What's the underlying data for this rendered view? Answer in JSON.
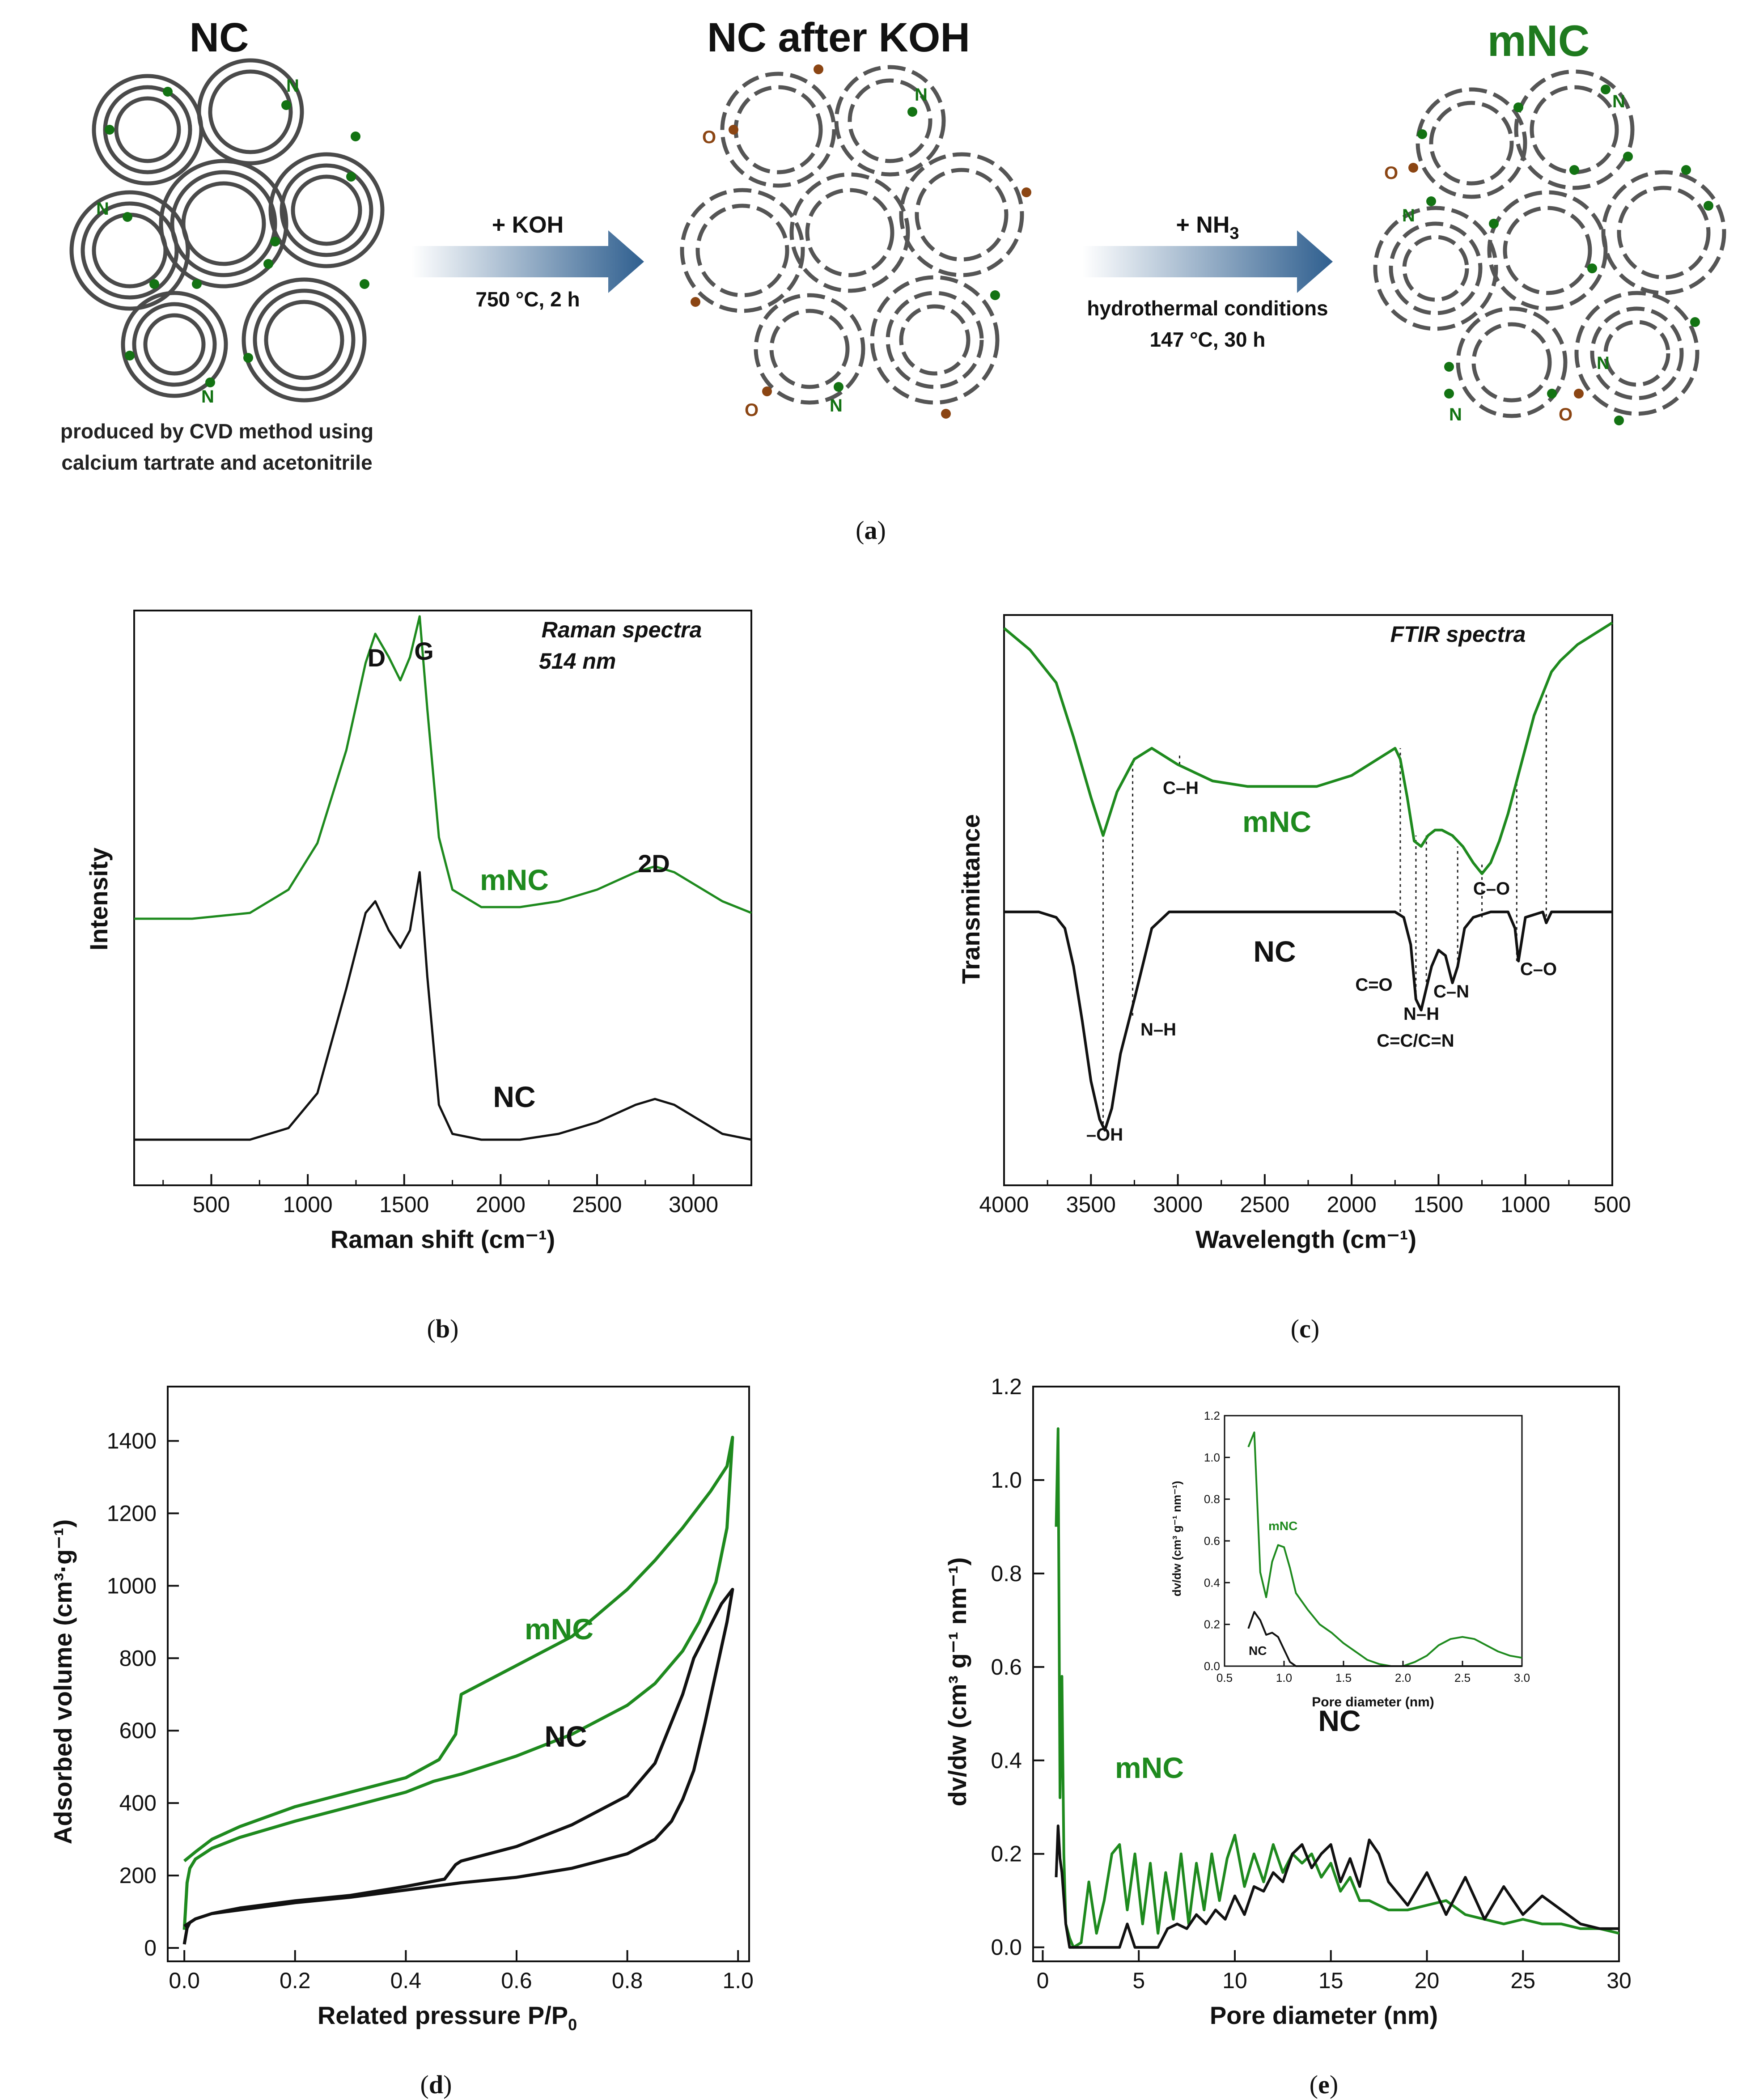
{
  "colors": {
    "green": "#1e8a1e",
    "black": "#111111",
    "dgreen": "#137313",
    "oxygen": "#8b4513",
    "arrow": "#3b6b9a"
  },
  "panel_a": {
    "title_nc": "NC",
    "title_nc_koh": "NC after KOH",
    "title_mnc": "mNC",
    "n_label": "N",
    "o_label": "O",
    "step1_reagent": "+ KOH",
    "step1_cond": "750 °C, 2 h",
    "step2_reagent_main": "+ NH",
    "step2_reagent_sub": "3",
    "step2_cond1": "hydrothermal conditions",
    "step2_cond2": "147 °C, 30 h",
    "caption1": "produced by CVD method using",
    "caption2": "calcium tartrate and acetonitrile",
    "label": "a"
  },
  "chart_data": [
    {
      "type": "line",
      "id": "b",
      "title": "Raman spectra",
      "subtitle": "514 nm",
      "xlabel": "Raman shift (cm⁻¹)",
      "ylabel": "Intensity",
      "xlim": [
        100,
        3300
      ],
      "xticks": [
        "500",
        "1000",
        "1500",
        "2000",
        "2500",
        "3000"
      ],
      "peak_labels": [
        "D",
        "G",
        "2D"
      ],
      "series": [
        {
          "name": "mNC",
          "x": [
            100,
            400,
            700,
            900,
            1050,
            1200,
            1300,
            1350,
            1420,
            1480,
            1530,
            1580,
            1620,
            1680,
            1750,
            1900,
            2100,
            2300,
            2500,
            2700,
            2800,
            2900,
            3000,
            3150,
            3300
          ],
          "y": [
            0.42,
            0.42,
            0.43,
            0.47,
            0.55,
            0.71,
            0.86,
            0.91,
            0.87,
            0.83,
            0.87,
            0.94,
            0.78,
            0.56,
            0.47,
            0.44,
            0.44,
            0.45,
            0.47,
            0.5,
            0.51,
            0.5,
            0.48,
            0.45,
            0.43
          ]
        },
        {
          "name": "NC",
          "x": [
            100,
            400,
            700,
            900,
            1050,
            1200,
            1300,
            1350,
            1420,
            1480,
            1530,
            1580,
            1620,
            1680,
            1750,
            1900,
            2100,
            2300,
            2500,
            2700,
            2800,
            2900,
            3000,
            3150,
            3300
          ],
          "y": [
            0.04,
            0.04,
            0.04,
            0.06,
            0.12,
            0.3,
            0.43,
            0.45,
            0.4,
            0.37,
            0.4,
            0.5,
            0.32,
            0.1,
            0.05,
            0.04,
            0.04,
            0.05,
            0.07,
            0.1,
            0.11,
            0.1,
            0.08,
            0.05,
            0.04
          ]
        }
      ],
      "label": "b"
    },
    {
      "type": "line",
      "id": "c",
      "title": "FTIR spectra",
      "xlabel": "Wavelength (cm⁻¹)",
      "ylabel": "Transmittance",
      "xlim": [
        4000,
        500
      ],
      "xticks": [
        "4000",
        "3500",
        "3000",
        "2500",
        "2000",
        "1500",
        "1000",
        "500"
      ],
      "annotations": [
        "C–H",
        "mNC",
        "C–O",
        "NC",
        "C=O",
        "C–N",
        "N–H",
        "C=C/C=N",
        "C–O",
        "N–H",
        "–OH"
      ],
      "series": [
        {
          "name": "mNC",
          "x": [
            4000,
            3850,
            3700,
            3600,
            3500,
            3430,
            3350,
            3250,
            3150,
            3000,
            2800,
            2600,
            2400,
            2200,
            2000,
            1850,
            1750,
            1720,
            1680,
            1640,
            1600,
            1560,
            1520,
            1480,
            1420,
            1360,
            1300,
            1250,
            1200,
            1150,
            1100,
            1050,
            1000,
            950,
            900,
            850,
            800,
            700,
            600,
            500
          ],
          "y": [
            0.98,
            0.94,
            0.88,
            0.78,
            0.67,
            0.6,
            0.68,
            0.74,
            0.76,
            0.73,
            0.7,
            0.69,
            0.69,
            0.69,
            0.71,
            0.74,
            0.76,
            0.74,
            0.67,
            0.59,
            0.58,
            0.6,
            0.61,
            0.61,
            0.6,
            0.58,
            0.55,
            0.53,
            0.55,
            0.59,
            0.64,
            0.7,
            0.76,
            0.82,
            0.86,
            0.9,
            0.92,
            0.95,
            0.97,
            0.99
          ]
        },
        {
          "name": "NC",
          "x": [
            4000,
            3800,
            3700,
            3650,
            3600,
            3550,
            3500,
            3450,
            3420,
            3380,
            3330,
            3250,
            3150,
            3050,
            2900,
            2700,
            2500,
            2300,
            2100,
            1900,
            1750,
            1700,
            1660,
            1630,
            1600,
            1570,
            1540,
            1500,
            1460,
            1420,
            1390,
            1350,
            1300,
            1200,
            1100,
            1060,
            1040,
            1000,
            900,
            880,
            850,
            700,
            500
          ],
          "y": [
            0.46,
            0.46,
            0.45,
            0.43,
            0.36,
            0.26,
            0.15,
            0.08,
            0.06,
            0.1,
            0.2,
            0.3,
            0.43,
            0.46,
            0.46,
            0.46,
            0.46,
            0.46,
            0.46,
            0.46,
            0.46,
            0.45,
            0.4,
            0.3,
            0.28,
            0.32,
            0.36,
            0.39,
            0.38,
            0.33,
            0.36,
            0.43,
            0.45,
            0.46,
            0.46,
            0.43,
            0.37,
            0.45,
            0.46,
            0.44,
            0.46,
            0.46,
            0.46
          ]
        }
      ],
      "label": "c"
    },
    {
      "type": "line",
      "id": "d",
      "xlabel": "Related pressure P/P",
      "xlabel_sub": "0",
      "ylabel": "Adsorbed volume (cm³·g⁻¹)",
      "xlim": [
        -0.03,
        1.02
      ],
      "ylim": [
        0,
        1550
      ],
      "xticks": [
        0.0,
        0.2,
        0.4,
        0.6,
        0.8,
        1.0
      ],
      "yticks": [
        0,
        200,
        400,
        600,
        800,
        1000,
        1200,
        1400
      ],
      "series": [
        {
          "name": "mNC",
          "label": "mNC",
          "x": [
            0.0,
            0.005,
            0.01,
            0.02,
            0.05,
            0.1,
            0.2,
            0.3,
            0.4,
            0.45,
            0.5,
            0.6,
            0.7,
            0.8,
            0.85,
            0.9,
            0.93,
            0.96,
            0.98,
            0.99,
            0.99,
            0.98,
            0.95,
            0.9,
            0.85,
            0.8,
            0.7,
            0.6,
            0.5,
            0.49,
            0.46,
            0.4,
            0.3,
            0.2,
            0.1,
            0.05,
            0.02,
            0.0
          ],
          "y": [
            50,
            180,
            220,
            245,
            275,
            305,
            350,
            390,
            430,
            460,
            480,
            530,
            590,
            670,
            730,
            820,
            900,
            1010,
            1160,
            1410,
            1410,
            1330,
            1260,
            1160,
            1070,
            990,
            860,
            780,
            700,
            590,
            520,
            470,
            430,
            390,
            335,
            300,
            265,
            240
          ]
        },
        {
          "name": "NC",
          "label": "NC",
          "x": [
            0.0,
            0.005,
            0.01,
            0.02,
            0.05,
            0.1,
            0.2,
            0.3,
            0.4,
            0.45,
            0.5,
            0.6,
            0.7,
            0.8,
            0.85,
            0.88,
            0.9,
            0.92,
            0.94,
            0.96,
            0.98,
            0.99,
            0.99,
            0.97,
            0.95,
            0.92,
            0.9,
            0.85,
            0.8,
            0.7,
            0.6,
            0.5,
            0.49,
            0.47,
            0.4,
            0.3,
            0.2,
            0.1,
            0.05,
            0.02,
            0.0
          ],
          "y": [
            10,
            55,
            70,
            80,
            95,
            105,
            125,
            140,
            160,
            170,
            180,
            195,
            220,
            260,
            300,
            350,
            410,
            490,
            620,
            760,
            900,
            990,
            990,
            950,
            890,
            800,
            700,
            510,
            420,
            340,
            280,
            240,
            230,
            190,
            170,
            145,
            130,
            110,
            95,
            80,
            60
          ]
        }
      ],
      "label": "d"
    },
    {
      "type": "line",
      "id": "e",
      "xlabel": "Pore diameter (nm)",
      "ylabel": "dv/dw (cm³ g⁻¹ nm⁻¹)",
      "xlim": [
        -0.5,
        30
      ],
      "ylim": [
        -0.03,
        1.2
      ],
      "xticks": [
        0,
        5,
        10,
        15,
        20,
        25,
        30
      ],
      "yticks": [
        0.0,
        0.2,
        0.4,
        0.6,
        0.8,
        1.0,
        1.2
      ],
      "series": [
        {
          "name": "mNC",
          "label": "mNC",
          "x": [
            0.7,
            0.8,
            0.9,
            1.0,
            1.1,
            1.2,
            1.4,
            1.6,
            2.0,
            2.4,
            2.8,
            3.2,
            3.6,
            4.0,
            4.4,
            4.8,
            5.2,
            5.6,
            6.0,
            6.4,
            6.8,
            7.2,
            7.6,
            8.0,
            8.4,
            8.8,
            9.2,
            9.6,
            10.0,
            10.5,
            11.0,
            11.5,
            12.0,
            12.5,
            13.0,
            13.5,
            14.0,
            14.5,
            15.0,
            15.5,
            16.0,
            16.5,
            17.0,
            18.0,
            19.0,
            20.0,
            21.0,
            22.0,
            23.0,
            24.0,
            25.0,
            26.0,
            27.0,
            28.0,
            29.0,
            30.0
          ],
          "y": [
            0.9,
            1.11,
            0.32,
            0.58,
            0.2,
            0.05,
            0.02,
            0.0,
            0.01,
            0.14,
            0.03,
            0.1,
            0.2,
            0.22,
            0.08,
            0.2,
            0.05,
            0.18,
            0.03,
            0.16,
            0.06,
            0.2,
            0.05,
            0.18,
            0.08,
            0.2,
            0.1,
            0.19,
            0.24,
            0.13,
            0.2,
            0.14,
            0.22,
            0.16,
            0.2,
            0.18,
            0.2,
            0.15,
            0.18,
            0.12,
            0.15,
            0.1,
            0.1,
            0.08,
            0.08,
            0.09,
            0.1,
            0.07,
            0.06,
            0.05,
            0.06,
            0.05,
            0.05,
            0.04,
            0.04,
            0.03
          ]
        },
        {
          "name": "NC",
          "label": "NC",
          "x": [
            0.7,
            0.8,
            0.9,
            1.0,
            1.2,
            1.4,
            2.0,
            3.0,
            4.0,
            4.4,
            4.8,
            5.5,
            6.0,
            6.5,
            7.0,
            7.5,
            8.0,
            8.5,
            9.0,
            9.5,
            10.0,
            10.5,
            11.0,
            11.5,
            12.0,
            12.5,
            13.0,
            13.5,
            14.0,
            14.5,
            15.0,
            15.5,
            16.0,
            16.5,
            17.0,
            17.5,
            18.0,
            19.0,
            20.0,
            21.0,
            22.0,
            23.0,
            24.0,
            25.0,
            26.0,
            27.0,
            28.0,
            29.0,
            30.0
          ],
          "y": [
            0.15,
            0.26,
            0.19,
            0.16,
            0.05,
            0.0,
            0.0,
            0.0,
            0.0,
            0.05,
            0.0,
            0.0,
            0.0,
            0.04,
            0.05,
            0.04,
            0.07,
            0.05,
            0.08,
            0.06,
            0.11,
            0.07,
            0.13,
            0.12,
            0.16,
            0.14,
            0.2,
            0.22,
            0.17,
            0.2,
            0.22,
            0.14,
            0.19,
            0.13,
            0.23,
            0.2,
            0.14,
            0.09,
            0.16,
            0.07,
            0.15,
            0.06,
            0.13,
            0.07,
            0.11,
            0.08,
            0.05,
            0.04,
            0.04
          ]
        }
      ],
      "inset": {
        "xlabel": "Pore diameter (nm)",
        "ylabel": "dv/dw (cm³ g⁻¹ nm⁻¹)",
        "xlim": [
          0.5,
          3.0
        ],
        "ylim": [
          0,
          1.2
        ],
        "xticks": [
          "0.5",
          "1.0",
          "1.5",
          "2.0",
          "2.5",
          "3.0"
        ],
        "yticks": [
          "0.0",
          "0.2",
          "0.4",
          "0.6",
          "0.8",
          "1.0",
          "1.2"
        ],
        "series": [
          {
            "name": "mNC",
            "x": [
              0.7,
              0.75,
              0.8,
              0.85,
              0.9,
              0.95,
              1.0,
              1.05,
              1.1,
              1.2,
              1.3,
              1.4,
              1.5,
              1.6,
              1.7,
              1.8,
              1.9,
              2.0,
              2.1,
              2.2,
              2.3,
              2.4,
              2.5,
              2.6,
              2.7,
              2.8,
              2.9,
              3.0
            ],
            "y": [
              1.05,
              1.12,
              0.45,
              0.33,
              0.5,
              0.58,
              0.57,
              0.47,
              0.35,
              0.27,
              0.2,
              0.16,
              0.11,
              0.07,
              0.03,
              0.01,
              0.0,
              0.0,
              0.02,
              0.05,
              0.1,
              0.13,
              0.14,
              0.13,
              0.1,
              0.07,
              0.05,
              0.04
            ]
          },
          {
            "name": "NC",
            "x": [
              0.7,
              0.75,
              0.8,
              0.85,
              0.9,
              0.95,
              1.0,
              1.05,
              1.1,
              1.2,
              1.5,
              2.0,
              2.5,
              3.0
            ],
            "y": [
              0.18,
              0.26,
              0.22,
              0.15,
              0.16,
              0.14,
              0.08,
              0.02,
              0.0,
              0.0,
              0.0,
              0.0,
              0.0,
              0.0
            ]
          }
        ]
      },
      "label": "e"
    }
  ]
}
